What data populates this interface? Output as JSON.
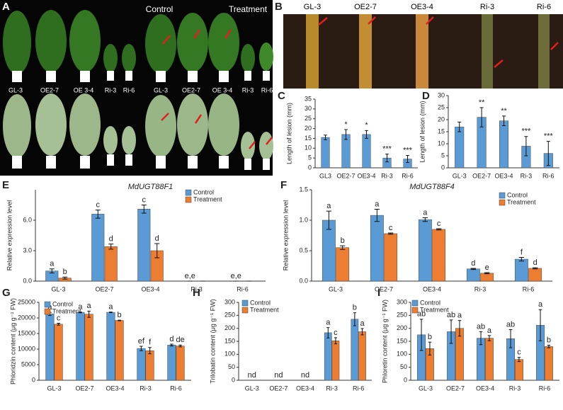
{
  "photo_a": {
    "panel": "A",
    "control": "Control",
    "treatment": "Treatment",
    "labels": [
      "GL-3",
      "OE2-7",
      "OE 3-4",
      "Ri-3",
      "Ri-6",
      "GL-3",
      "OE2-7",
      "OE 3-4",
      "Ri-3",
      "Ri-6"
    ]
  },
  "photo_b": {
    "panel": "B",
    "labels": [
      "GL-3",
      "OE2-7",
      "OE3-4",
      "Ri-3",
      "Ri-6"
    ]
  },
  "chart_data": [
    {
      "type": "bar",
      "panel": "C",
      "ylabel": "Length of lesion (mm)",
      "categories": [
        "GL3",
        "OE2-7",
        "OE3-4",
        "Ri-3",
        "Ri-6"
      ],
      "series": [
        {
          "color": "#5b9bd5",
          "values": [
            15.5,
            17,
            17,
            5,
            4.5
          ],
          "errors": [
            1.2,
            2.5,
            2,
            2,
            1.8
          ],
          "letters": [
            null,
            "*",
            "*",
            "***",
            "***"
          ]
        }
      ],
      "ylim": [
        0,
        35
      ],
      "yticks": [
        0,
        5,
        10,
        15,
        20,
        25,
        30,
        35
      ]
    },
    {
      "type": "bar",
      "panel": "D",
      "ylabel": "Length of lesion (mm)",
      "categories": [
        "GL-3",
        "OE2-7",
        "OE3-4",
        "Ri-3",
        "Ri-6"
      ],
      "series": [
        {
          "color": "#5b9bd5",
          "values": [
            17,
            21,
            19.5,
            9,
            6
          ],
          "errors": [
            2,
            4,
            2,
            4,
            5
          ],
          "letters": [
            null,
            "**",
            "**",
            "***",
            "***"
          ]
        }
      ],
      "ylim": [
        0,
        30
      ],
      "yticks": [
        0,
        5,
        10,
        15,
        20,
        25,
        30
      ]
    },
    {
      "type": "bar",
      "panel": "E",
      "title": "MdUGT88F1",
      "ylabel": "Relative expression level",
      "categories": [
        "GL-3",
        "OE2-7",
        "OE3-4",
        "Ri-3",
        "Ri-6"
      ],
      "series": [
        {
          "name": "Control",
          "color": "#5b9bd5",
          "values": [
            1.0,
            6.6,
            7.1,
            0,
            0
          ],
          "errors": [
            0.2,
            0.4,
            0.4,
            0,
            0
          ],
          "letters": [
            "a",
            "c",
            "c",
            "e,e",
            "e,e"
          ]
        },
        {
          "name": "Treatment",
          "color": "#ed7d31",
          "values": [
            0.3,
            3.4,
            3.0,
            0,
            0
          ],
          "errors": [
            0.1,
            0.25,
            0.7,
            0,
            0
          ],
          "letters": [
            "b",
            "d",
            "d",
            null,
            null
          ]
        }
      ],
      "ylim": [
        0,
        9
      ],
      "yticks": [
        {
          "value": 0,
          "label": "0.0"
        },
        {
          "value": 3,
          "label": "3.0"
        },
        {
          "value": 6,
          "label": "6.0"
        }
      ]
    },
    {
      "type": "bar",
      "panel": "F",
      "title": "MdUGT88F4",
      "ylabel": "Relative expression level",
      "categories": [
        "GL-3",
        "OE2-7",
        "OE3-4",
        "Ri-3",
        "Ri-6"
      ],
      "series": [
        {
          "name": "Control",
          "color": "#5b9bd5",
          "values": [
            1.0,
            1.08,
            1.01,
            0.2,
            0.36
          ],
          "errors": [
            0.15,
            0.1,
            0.03,
            0.01,
            0.03
          ],
          "letters": [
            "a",
            "a",
            "a",
            "d",
            "f"
          ]
        },
        {
          "name": "Treatment",
          "color": "#ed7d31",
          "values": [
            0.55,
            0.78,
            0.85,
            0.13,
            0.21
          ],
          "errors": [
            0.03,
            0.01,
            0.01,
            0.01,
            0.01
          ],
          "letters": [
            "b",
            "c",
            "c",
            "e",
            "d"
          ]
        }
      ],
      "ylim": [
        0,
        1.5
      ],
      "yticks": [
        {
          "value": 0,
          "label": "0.0"
        },
        {
          "value": 0.5,
          "label": "0.5"
        },
        {
          "value": 1,
          "label": "1.0"
        },
        {
          "value": 1.5,
          "label": "1.5"
        }
      ]
    },
    {
      "type": "bar",
      "panel": "G",
      "ylabel": "Phloridzin content (μg g⁻¹ FW)",
      "categories": [
        "GL-3",
        "OE2-7",
        "OE3-4",
        "Ri-3",
        "Ri-6"
      ],
      "series": [
        {
          "name": "Control",
          "color": "#5b9bd5",
          "values": [
            21300,
            21800,
            21800,
            10200,
            11300
          ],
          "errors": [
            500,
            100,
            100,
            700,
            300
          ],
          "letters": [
            "a",
            "a",
            "a",
            "ef",
            "d"
          ]
        },
        {
          "name": "Treatment",
          "color": "#ed7d31",
          "values": [
            18000,
            21200,
            19200,
            9500,
            11000
          ],
          "errors": [
            300,
            1000,
            100,
            1000,
            300
          ],
          "letters": [
            "c",
            "a",
            "b",
            "f",
            "de"
          ]
        }
      ],
      "ylim": [
        0,
        25000
      ],
      "yticks": [
        0,
        5000,
        10000,
        15000,
        20000,
        25000
      ]
    },
    {
      "type": "bar",
      "panel": "H",
      "ylabel": "Trilobatin content (μg g⁻¹ FW)",
      "categories": [
        "GL-3",
        "OE2-7",
        "OE3-4",
        "Ri-3",
        "Ri-6"
      ],
      "series": [
        {
          "name": "Control",
          "color": "#5b9bd5",
          "values": [
            null,
            null,
            null,
            183,
            235
          ],
          "errors": [
            null,
            null,
            null,
            20,
            25
          ],
          "letters": [
            "nd",
            "nd",
            "nd",
            "a",
            "b"
          ]
        },
        {
          "name": "Treatment",
          "color": "#ed7d31",
          "values": [
            null,
            null,
            null,
            152,
            187
          ],
          "errors": [
            null,
            null,
            null,
            12,
            12
          ],
          "letters": [
            null,
            null,
            null,
            "c",
            "a"
          ]
        }
      ],
      "ylim": [
        0,
        300
      ],
      "yticks": [
        0,
        50,
        100,
        150,
        200,
        250,
        300
      ]
    },
    {
      "type": "bar",
      "panel": "I",
      "ylabel": "Phloretin content (μg g⁻¹ FW)",
      "categories": [
        "GL-3",
        "OE2-7",
        "OE3-4",
        "Ri-3",
        "Ri-6"
      ],
      "series": [
        {
          "name": "Control",
          "color": "#5b9bd5",
          "values": [
            175,
            187,
            162,
            160,
            212
          ],
          "errors": [
            60,
            45,
            25,
            35,
            60
          ],
          "letters": [
            "ab",
            "ab",
            "ab",
            "ab",
            "a"
          ]
        },
        {
          "name": "Treatment",
          "color": "#ed7d31",
          "values": [
            122,
            200,
            162,
            80,
            130
          ],
          "errors": [
            25,
            30,
            10,
            8,
            5
          ],
          "letters": [
            "b",
            "a",
            "a",
            "c",
            "b"
          ]
        }
      ],
      "ylim": [
        0,
        300
      ],
      "yticks": [
        0,
        50,
        100,
        150,
        200,
        250,
        300
      ]
    }
  ]
}
